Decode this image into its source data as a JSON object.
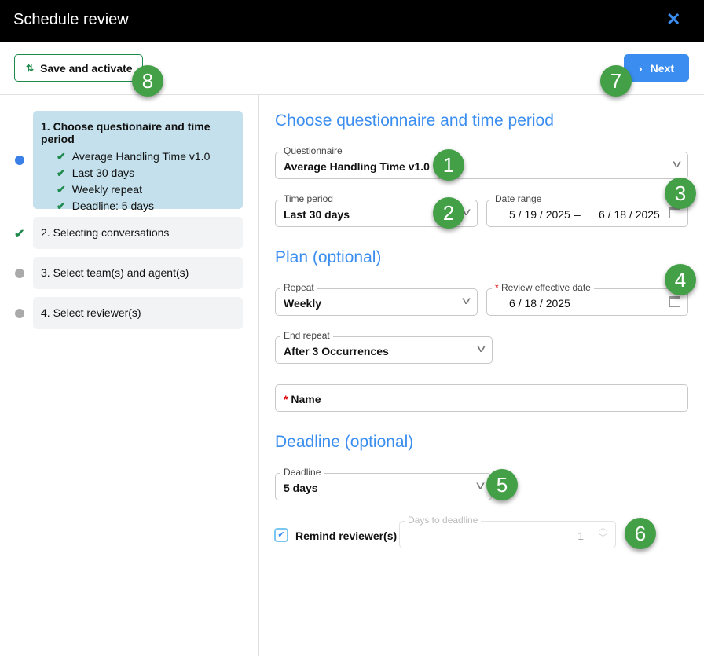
{
  "dialog": {
    "title": "Schedule review",
    "close_icon": "close-icon"
  },
  "toolbar": {
    "save_label": "Save and activate",
    "next_label": "Next"
  },
  "steps": [
    {
      "label": "1. Choose questionaire and time period",
      "status": "current",
      "items": [
        "Average Handling Time v1.0",
        "Last 30 days",
        "Weekly repeat",
        "Deadline: 5 days"
      ]
    },
    {
      "label": "2. Selecting conversations",
      "status": "done"
    },
    {
      "label": "3. Select team(s) and agent(s)",
      "status": "pending"
    },
    {
      "label": "4. Select reviewer(s)",
      "status": "pending"
    }
  ],
  "form": {
    "section1": "Choose questionnaire and time period",
    "questionnaire": {
      "label": "Questionnaire",
      "value": "Average Handling Time v1.0"
    },
    "time_period": {
      "label": "Time period",
      "value": "Last 30 days"
    },
    "date_range": {
      "label": "Date range",
      "start": "5 / 19 / 2025",
      "sep": "–",
      "end": "6 / 18 / 2025"
    },
    "section2": "Plan (optional)",
    "repeat": {
      "label": "Repeat",
      "value": "Weekly"
    },
    "effective_date": {
      "required": "*",
      "label": "Review effective date",
      "value": "6 / 18 / 2025"
    },
    "end_repeat": {
      "label": "End repeat",
      "value": "After 3 Occurrences"
    },
    "name": {
      "required": "*",
      "placeholder": "Name",
      "value": ""
    },
    "section3": "Deadline (optional)",
    "deadline": {
      "label": "Deadline",
      "value": "5 days"
    },
    "remind": {
      "label": "Remind reviewer(s)",
      "checked": true
    },
    "days_to_deadline": {
      "label": "Days to deadline",
      "value": "1",
      "disabled": true
    }
  },
  "annotations": [
    "1",
    "2",
    "3",
    "4",
    "5",
    "6",
    "7",
    "8"
  ],
  "colors": {
    "accent": "#3b8ef0",
    "success": "#1f8a4c",
    "badge": "#43a047"
  }
}
